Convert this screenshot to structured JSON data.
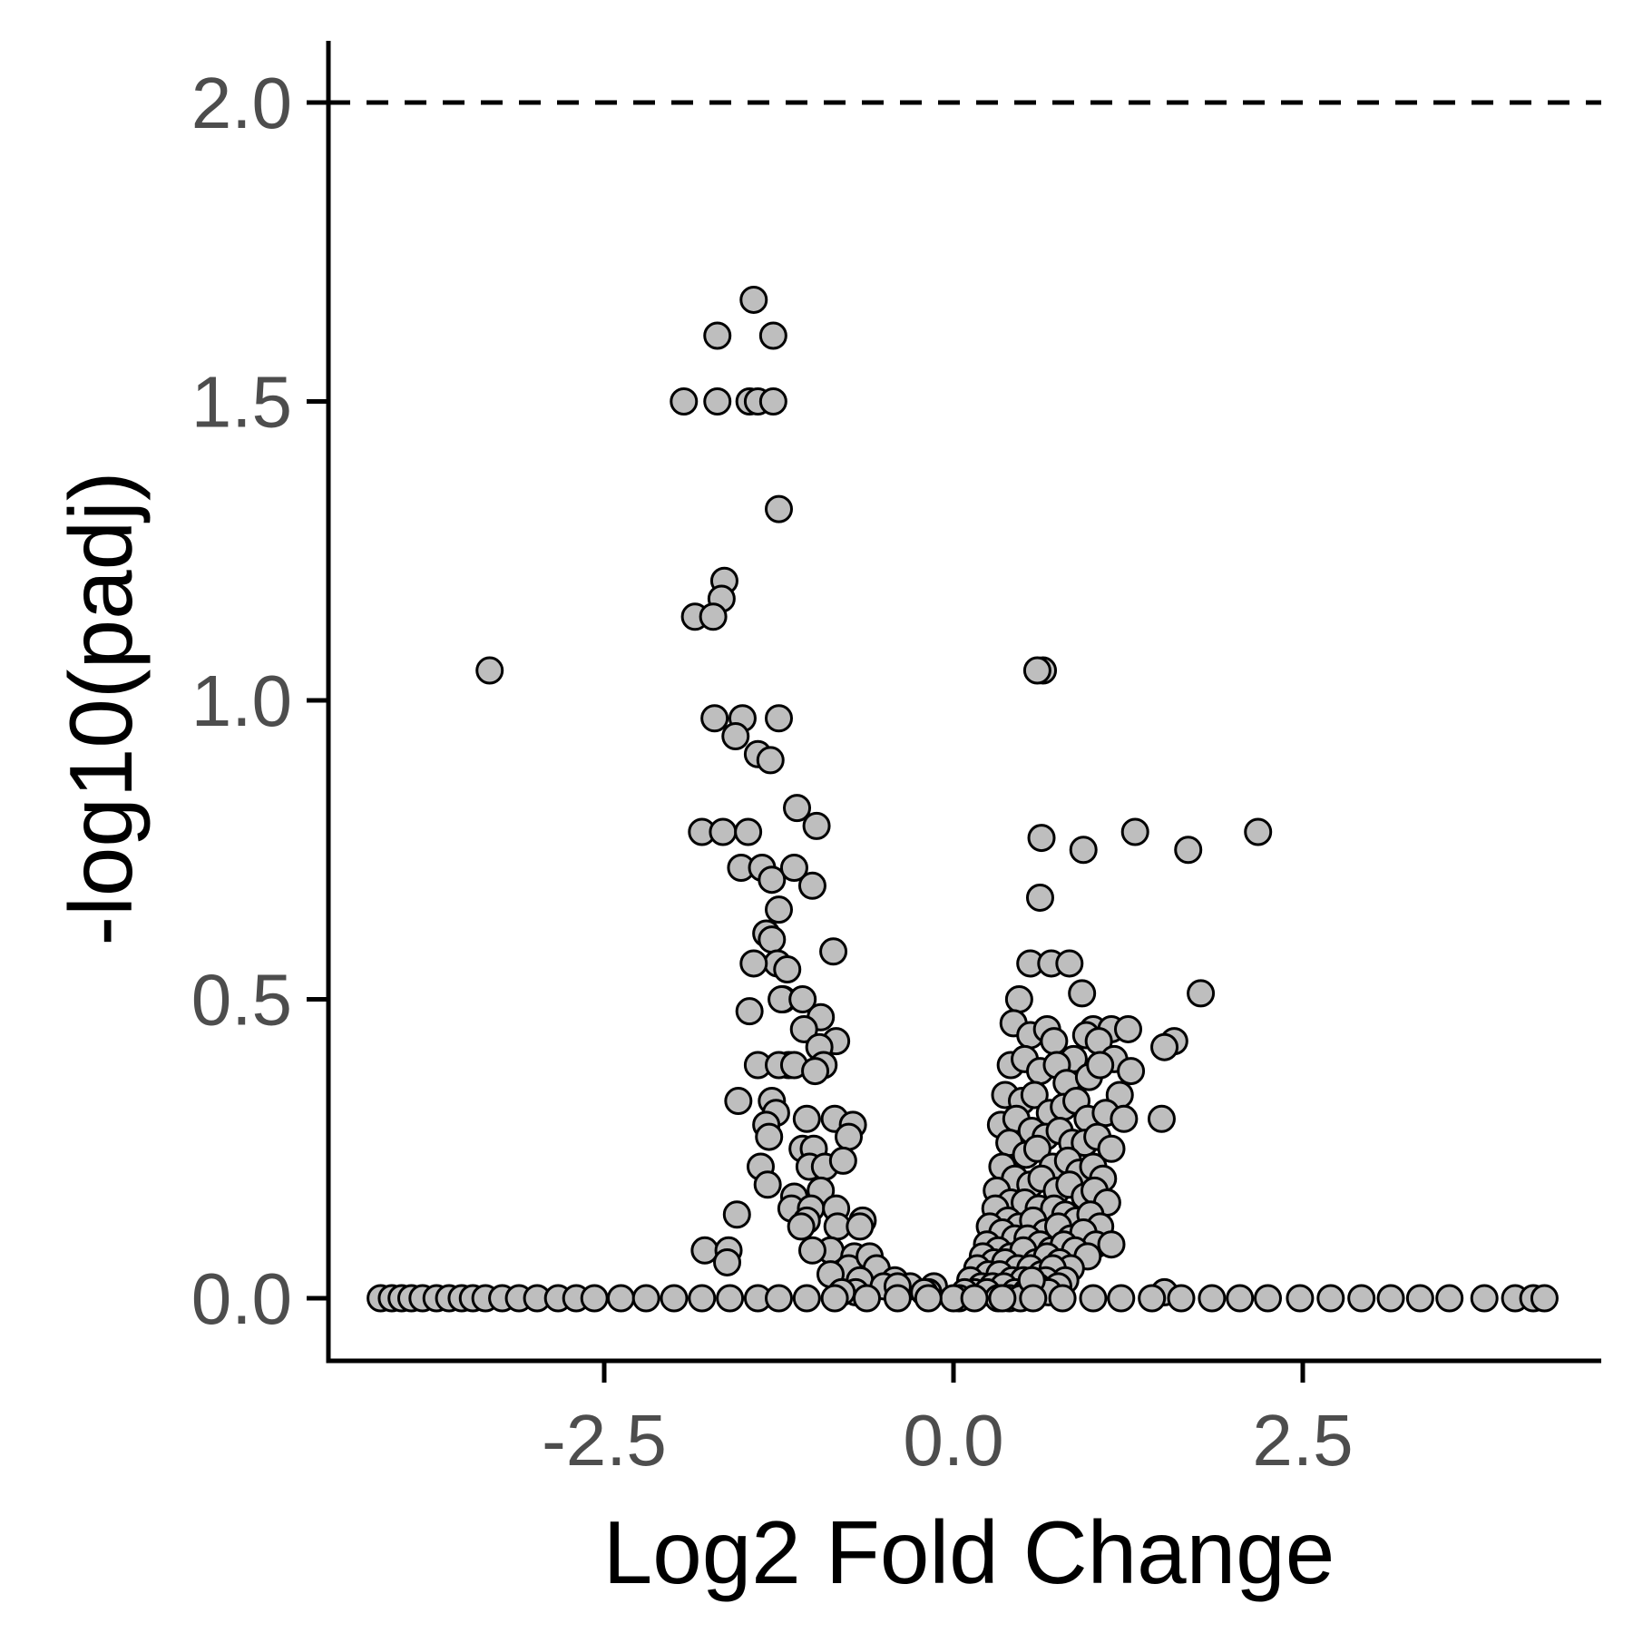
{
  "chart_data": {
    "type": "scatter",
    "title": "",
    "xlabel": "Log2 Fold Change",
    "ylabel": "-log10(padj)",
    "xlim": [
      -3.6,
      3.75
    ],
    "ylim": [
      -0.1,
      2.1
    ],
    "x_ticks": [
      {
        "value": -2.5,
        "label": "-2.5"
      },
      {
        "value": 0.0,
        "label": "0.0"
      },
      {
        "value": 2.5,
        "label": "2.5"
      }
    ],
    "y_ticks": [
      {
        "value": 0.0,
        "label": "0.0"
      },
      {
        "value": 0.5,
        "label": "0.5"
      },
      {
        "value": 1.0,
        "label": "1.0"
      },
      {
        "value": 1.5,
        "label": "1.5"
      },
      {
        "value": 2.0,
        "label": "2.0"
      }
    ],
    "reference_lines": [
      {
        "orientation": "horizontal",
        "y": 2.0,
        "style": "dashed"
      }
    ],
    "grid": false,
    "legend": "none",
    "colors": {
      "point_fill": "#bebebe",
      "point_stroke": "#000000",
      "axis": "#000000",
      "tick_label": "#4d4d4d"
    },
    "series": [
      {
        "x": [
          -1.43,
          -1.69,
          -1.29,
          -1.93,
          -1.69,
          -1.46,
          -1.4,
          -1.29,
          -1.25,
          -1.64,
          -1.66,
          -1.85,
          -1.72,
          -3.32,
          0.64,
          -1.71,
          -1.51,
          -1.25,
          -1.56,
          -1.4,
          -1.31,
          -1.8,
          -1.65,
          -1.12,
          -1.47,
          -0.98,
          -1.52,
          -1.37,
          -1.3,
          -1.25,
          -1.34,
          -1.3,
          -1.14,
          -1.01,
          -1.26,
          -1.19,
          -1.43,
          -1.22,
          -0.86,
          -1.23,
          -1.08,
          -1.46,
          -0.95,
          -1.07,
          -0.84,
          -1.4,
          -1.18,
          -1.25,
          -1.14,
          -1.3,
          -0.96,
          -0.93,
          -0.99,
          -1.54,
          -1.27,
          -0.85,
          -1.05,
          -1.34,
          -1.32,
          -1.08,
          -0.72,
          -0.75,
          -1.0,
          -1.38,
          -1.33,
          -1.03,
          -0.92,
          -0.79,
          -1.14,
          -1.16,
          -0.95,
          -1.02,
          -1.05,
          -0.84,
          -0.65,
          -0.83,
          -1.09,
          -0.67,
          -0.88,
          -0.71,
          -1.55,
          -0.75,
          -0.6,
          -1.78,
          -1.61,
          -1.62,
          -1.01,
          -0.55,
          -0.42,
          -0.31,
          -0.88,
          -0.67,
          -0.5,
          -0.7,
          -0.4,
          -0.8,
          0.6,
          0.63,
          0.62,
          0.93,
          1.3,
          1.68,
          2.18,
          0.55,
          0.7,
          0.83,
          0.92,
          1.77,
          0.47,
          1.0,
          1.13,
          1.25,
          1.58,
          1.51,
          0.43,
          0.55,
          0.67,
          0.72,
          0.86,
          0.95,
          1.04,
          1.15,
          1.27,
          0.41,
          0.51,
          0.62,
          0.74,
          0.81,
          0.97,
          1.05,
          1.19,
          0.37,
          0.49,
          0.58,
          0.69,
          0.79,
          0.88,
          0.96,
          1.09,
          1.22,
          0.34,
          0.45,
          0.56,
          0.66,
          0.76,
          0.85,
          0.94,
          1.03,
          1.13,
          1.49,
          0.4,
          0.52,
          0.6,
          0.71,
          0.82,
          0.9,
          1.0,
          1.07,
          0.35,
          0.44,
          0.55,
          0.63,
          0.74,
          0.83,
          0.94,
          1.01,
          1.1,
          0.31,
          0.41,
          0.51,
          0.61,
          0.72,
          0.8,
          0.88,
          0.98,
          1.05,
          0.3,
          0.39,
          0.47,
          0.57,
          0.66,
          0.75,
          0.84,
          0.93,
          1.02,
          0.26,
          0.35,
          0.44,
          0.53,
          0.62,
          0.7,
          0.79,
          0.87,
          0.96,
          1.13,
          0.24,
          0.32,
          0.41,
          0.5,
          0.59,
          0.67,
          0.76,
          0.84,
          0.21,
          0.29,
          0.37,
          0.46,
          0.55,
          0.63,
          0.71,
          0.8,
          0.17,
          0.25,
          0.33,
          0.42,
          0.5,
          0.58,
          0.66,
          0.75,
          0.12,
          0.2,
          0.28,
          0.36,
          0.44,
          0.52,
          0.6,
          0.68,
          0.15,
          0.24,
          0.32,
          0.4,
          0.48,
          0.56,
          1.51,
          0.08,
          -0.14,
          -0.18,
          -0.21,
          0.04,
          0.0,
          -4.1,
          -4.02,
          -3.95,
          -3.88,
          -3.8,
          -3.7,
          -3.61,
          -3.52,
          -3.44,
          -3.35,
          -3.23,
          -3.11,
          -2.98,
          -2.83,
          -2.7,
          -2.57,
          -2.38,
          -2.2,
          -2.0,
          -1.8,
          -1.6,
          -1.4,
          -1.25,
          -1.05,
          -0.85,
          -0.62,
          -0.4,
          -0.18,
          0.15,
          0.35,
          0.57,
          0.78,
          1.0,
          1.2,
          1.42,
          1.63,
          1.85,
          2.05,
          2.25,
          2.48,
          2.7,
          2.92,
          3.13,
          3.34,
          3.55,
          3.8,
          4.02,
          4.15,
          4.23
        ],
        "y": [
          1.67,
          1.61,
          1.61,
          1.5,
          1.5,
          1.5,
          1.5,
          1.5,
          1.32,
          1.2,
          1.17,
          1.14,
          1.14,
          1.05,
          1.05,
          0.97,
          0.97,
          0.97,
          0.94,
          0.91,
          0.9,
          0.78,
          0.78,
          0.82,
          0.78,
          0.79,
          0.72,
          0.72,
          0.7,
          0.65,
          0.61,
          0.6,
          0.72,
          0.69,
          0.56,
          0.55,
          0.56,
          0.5,
          0.58,
          0.5,
          0.5,
          0.48,
          0.47,
          0.45,
          0.43,
          0.39,
          0.39,
          0.39,
          0.39,
          0.33,
          0.42,
          0.39,
          0.38,
          0.33,
          0.31,
          0.3,
          0.3,
          0.29,
          0.27,
          0.25,
          0.29,
          0.27,
          0.25,
          0.22,
          0.19,
          0.22,
          0.22,
          0.23,
          0.17,
          0.15,
          0.18,
          0.15,
          0.13,
          0.15,
          0.13,
          0.12,
          0.12,
          0.12,
          0.08,
          0.07,
          0.14,
          0.05,
          0.07,
          0.08,
          0.08,
          0.06,
          0.08,
          0.05,
          0.03,
          0.02,
          0.04,
          0.03,
          0.02,
          0.01,
          0.02,
          0.01,
          1.05,
          0.77,
          0.67,
          0.75,
          0.78,
          0.75,
          0.78,
          0.56,
          0.56,
          0.56,
          0.51,
          0.51,
          0.5,
          0.45,
          0.45,
          0.45,
          0.43,
          0.42,
          0.46,
          0.44,
          0.45,
          0.43,
          0.4,
          0.44,
          0.43,
          0.4,
          0.38,
          0.39,
          0.4,
          0.38,
          0.39,
          0.36,
          0.37,
          0.39,
          0.34,
          0.34,
          0.33,
          0.34,
          0.31,
          0.32,
          0.33,
          0.3,
          0.31,
          0.3,
          0.29,
          0.3,
          0.28,
          0.27,
          0.28,
          0.26,
          0.26,
          0.27,
          0.25,
          0.3,
          0.26,
          0.24,
          0.25,
          0.22,
          0.23,
          0.21,
          0.22,
          0.2,
          0.22,
          0.2,
          0.19,
          0.2,
          0.18,
          0.19,
          0.17,
          0.18,
          0.16,
          0.18,
          0.16,
          0.16,
          0.15,
          0.15,
          0.14,
          0.13,
          0.14,
          0.12,
          0.15,
          0.13,
          0.12,
          0.13,
          0.11,
          0.12,
          0.1,
          0.11,
          0.09,
          0.12,
          0.11,
          0.1,
          0.1,
          0.09,
          0.08,
          0.09,
          0.08,
          0.07,
          0.09,
          0.09,
          0.08,
          0.07,
          0.08,
          0.06,
          0.07,
          0.06,
          0.05,
          0.07,
          0.06,
          0.06,
          0.05,
          0.05,
          0.04,
          0.05,
          0.03,
          0.05,
          0.04,
          0.04,
          0.03,
          0.03,
          0.02,
          0.03,
          0.02,
          0.03,
          0.02,
          0.02,
          0.02,
          0.01,
          0.01,
          0.02,
          0.01,
          0.01,
          0.01,
          0.0,
          0.0,
          0.0,
          0.03,
          0.01,
          0.01,
          0.02,
          0.01,
          0.01,
          0.0,
          0.0,
          0,
          0,
          0,
          0,
          0,
          0,
          0,
          0,
          0,
          0,
          0,
          0,
          0,
          0,
          0,
          0,
          0,
          0,
          0,
          0,
          0,
          0,
          0,
          0,
          0,
          0,
          0,
          0,
          0,
          0,
          0,
          0,
          0,
          0,
          0,
          0,
          0,
          0,
          0,
          0,
          0,
          0,
          0,
          0,
          0,
          0,
          0,
          0,
          0
        ]
      }
    ]
  }
}
